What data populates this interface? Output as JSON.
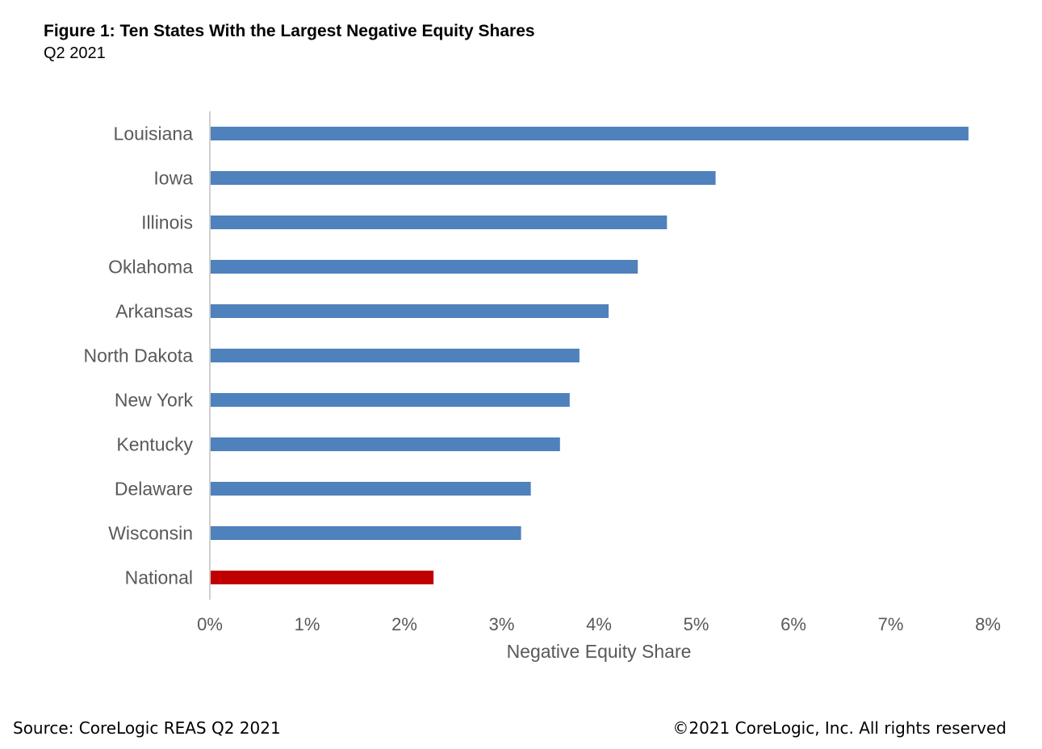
{
  "header": {
    "title": "Figure 1:  Ten States With the Largest Negative Equity Shares",
    "subtitle": "Q2 2021"
  },
  "chart_data": {
    "type": "bar",
    "orientation": "horizontal",
    "categories": [
      "Louisiana",
      "Iowa",
      "Illinois",
      "Oklahoma",
      "Arkansas",
      "North Dakota",
      "New York",
      "Kentucky",
      "Delaware",
      "Wisconsin",
      "National"
    ],
    "values": [
      7.8,
      5.2,
      4.7,
      4.4,
      4.1,
      3.8,
      3.7,
      3.6,
      3.3,
      3.2,
      2.3
    ],
    "unit": "%",
    "xlabel": "Negative Equity Share",
    "ylabel": "",
    "xlim": [
      0,
      8
    ],
    "xticks": [
      "0%",
      "1%",
      "2%",
      "3%",
      "4%",
      "5%",
      "6%",
      "7%",
      "8%"
    ],
    "grid": false,
    "legend": "none",
    "colors": {
      "default": "#4F81BD",
      "highlight": "#C00000",
      "highlight_category": "National",
      "axis": "#BFBFBF",
      "text": "#595959"
    }
  },
  "footer": {
    "source": "Source: CoreLogic REAS Q2 2021",
    "copyright": "©2021 CoreLogic, Inc. All rights reserved"
  }
}
